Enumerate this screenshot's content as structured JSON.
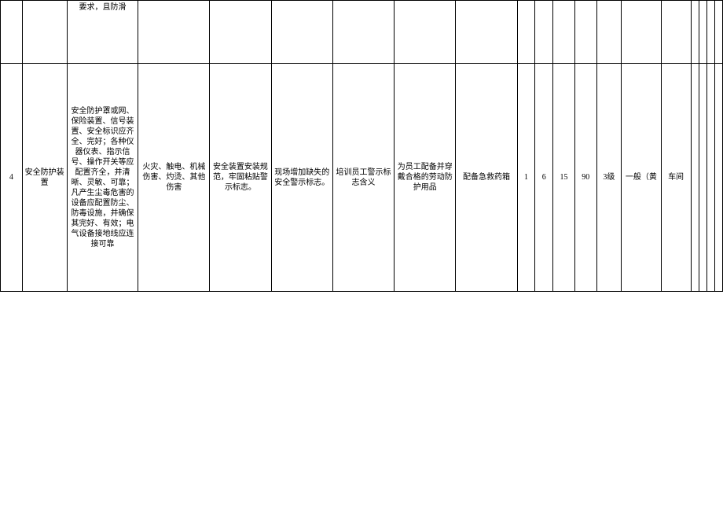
{
  "table": {
    "row1": {
      "idx": "",
      "name": "",
      "desc": "要求，且防滑",
      "hazard": "",
      "measure1": "",
      "measure2": "",
      "measure3": "",
      "measure4": "",
      "measure5": "",
      "n1": "",
      "n2": "",
      "n3": "",
      "n4": "",
      "level": "",
      "color": "",
      "dept": "",
      "e1": "",
      "e2": "",
      "e3": "",
      "e4": ""
    },
    "row2": {
      "idx": "4",
      "name": "安全防护装置",
      "desc": "安全防护罩或网、保险装置、信号装置、安全标识应齐全、完好；各种仪器仪表、指示信号、操作开关等应配置齐全，并清晰、灵敏、可靠；凡产生尘毒危害的设备应配置防尘、防毒设施，并确保其完好、有效；电气设备接地线应连接可靠",
      "hazard": "火灾、触电、机械伤害、灼烫、其他伤害",
      "measure1": "安全装置安装规范，牢固粘贴警示标志。",
      "measure2": "现场增加缺失的安全警示标志。",
      "measure3": "培训员工警示标志含义",
      "measure4": "为员工配备并穿戴合格的劳动防护用品",
      "measure5": "配备急救药箱",
      "n1": "1",
      "n2": "6",
      "n3": "15",
      "n4": "90",
      "level": "3级",
      "color": "一般（黄",
      "dept": "车间",
      "e1": "",
      "e2": "",
      "e3": "",
      "e4": ""
    }
  },
  "colors": {
    "border": "#000000",
    "background": "#ffffff",
    "text": "#000000"
  }
}
